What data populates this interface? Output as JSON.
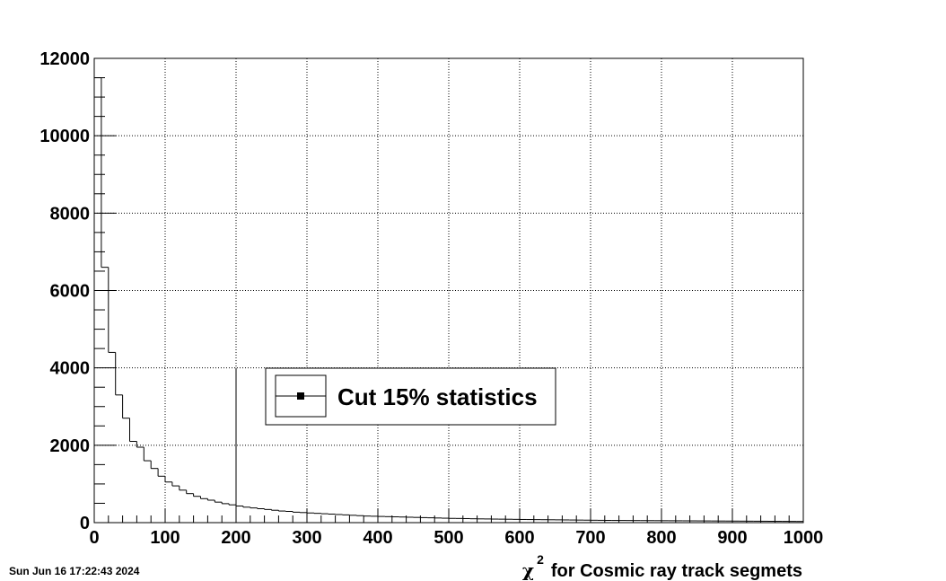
{
  "timestamp": "Sun Jun 16 17:22:43 2024",
  "chart_data": {
    "type": "bar",
    "histogram": true,
    "xlabel_symbol": "χ",
    "xlabel_superscript": "2",
    "xlabel_text": "for Cosmic ray track segmets",
    "ylabel": "",
    "xlim": [
      0,
      1000
    ],
    "ylim": [
      0,
      12000
    ],
    "grid": true,
    "x_ticks": [
      "0",
      "100",
      "200",
      "300",
      "400",
      "500",
      "600",
      "700",
      "800",
      "900",
      "1000"
    ],
    "y_ticks": [
      "0",
      "2000",
      "4000",
      "6000",
      "8000",
      "10000",
      "12000"
    ],
    "bin_width": 10,
    "bin_edges_start": 0,
    "values": [
      11500,
      6600,
      4400,
      3300,
      2700,
      2100,
      1950,
      1600,
      1400,
      1200,
      1050,
      950,
      840,
      750,
      680,
      620,
      580,
      530,
      490,
      460,
      430,
      400,
      380,
      360,
      340,
      320,
      300,
      290,
      270,
      260,
      250,
      240,
      230,
      220,
      210,
      200,
      190,
      180,
      170,
      165,
      160,
      155,
      150,
      145,
      140,
      135,
      130,
      125,
      120,
      115,
      110,
      108,
      105,
      100,
      97,
      95,
      92,
      90,
      88,
      85,
      82,
      80,
      78,
      76,
      74,
      72,
      70,
      68,
      66,
      64,
      62,
      60,
      58,
      57,
      56,
      55,
      54,
      53,
      52,
      51,
      50,
      49,
      48,
      47,
      46,
      45,
      44,
      43,
      42,
      41,
      40,
      39,
      38,
      37,
      36,
      35,
      34,
      33,
      32,
      31
    ],
    "marker_line_x": 200,
    "marker_line_y": 4000,
    "legend": {
      "label": "Cut 15% statistics",
      "placement": "center"
    }
  }
}
